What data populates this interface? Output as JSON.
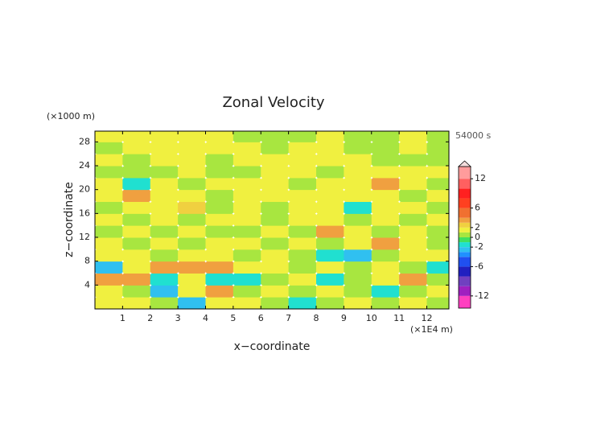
{
  "chart_data": {
    "type": "contour",
    "title": "Zonal Velocity",
    "y_unit_label": "(×1000 m)",
    "time_label": "54000 s",
    "y_label": "z−coordinate",
    "x_label": "x−coordinate",
    "x_unit_label": "(×1E4 m)",
    "xlim": [
      0,
      12.8
    ],
    "ylim": [
      0,
      29.8
    ],
    "xticks": [
      1,
      2,
      3,
      4,
      5,
      6,
      7,
      8,
      9,
      10,
      11,
      12
    ],
    "yticks": [
      4,
      8,
      12,
      16,
      20,
      24,
      28
    ],
    "x": [
      0.5,
      1.5,
      2.5,
      3.5,
      4.5,
      5.5,
      6.5,
      7.5,
      8.5,
      9.5,
      10.5,
      11.5,
      12.5
    ],
    "y": [
      1,
      3,
      5,
      7,
      9,
      11,
      13,
      15,
      17,
      19,
      21,
      23,
      25,
      27,
      29
    ],
    "values": [
      [
        1.5,
        1.5,
        0.5,
        -2.5,
        1.5,
        1.5,
        0.5,
        -1.5,
        0.5,
        1.5,
        0.5,
        1.5,
        0.5
      ],
      [
        1.5,
        0.5,
        -2.5,
        1.5,
        3.5,
        0.5,
        1.5,
        0.5,
        1.5,
        0.5,
        -1.5,
        0.5,
        1.5
      ],
      [
        3.5,
        3.5,
        -1.5,
        1.5,
        -1.5,
        -1.5,
        0.5,
        1.5,
        -1.5,
        0.5,
        1.5,
        3.5,
        0.5
      ],
      [
        -2.5,
        1.5,
        3.5,
        3.5,
        3.5,
        1.5,
        1.5,
        0.5,
        1.5,
        0.5,
        1.5,
        0.5,
        -1.5
      ],
      [
        1.5,
        1.5,
        0.5,
        1.5,
        1.5,
        0.5,
        1.5,
        0.5,
        -1.5,
        -2.5,
        0.5,
        1.5,
        1.5
      ],
      [
        1.5,
        0.5,
        1.5,
        0.5,
        1.5,
        1.5,
        0.5,
        1.5,
        0.5,
        1.5,
        3.5,
        1.5,
        0.5
      ],
      [
        0.5,
        1.5,
        0.5,
        1.5,
        0.5,
        0.5,
        1.5,
        0.5,
        3.5,
        1.5,
        0.5,
        1.5,
        0.5
      ],
      [
        1.5,
        0.5,
        1.5,
        0.5,
        1.5,
        1.5,
        0.5,
        1.5,
        1.5,
        0.5,
        1.5,
        0.5,
        1.5
      ],
      [
        0.5,
        1.5,
        1.5,
        2.5,
        0.5,
        1.5,
        0.5,
        1.5,
        1.5,
        -1.5,
        1.5,
        1.5,
        0.5
      ],
      [
        1.5,
        3.5,
        1.5,
        1.5,
        0.5,
        1.5,
        1.5,
        1.5,
        1.5,
        1.5,
        1.5,
        0.5,
        1.5
      ],
      [
        1.5,
        -1.5,
        1.5,
        0.5,
        1.5,
        1.5,
        1.5,
        0.5,
        1.5,
        1.5,
        3.5,
        1.5,
        0.5
      ],
      [
        0.5,
        0.5,
        0.5,
        1.5,
        0.5,
        0.5,
        1.5,
        1.5,
        0.5,
        1.5,
        1.5,
        1.5,
        1.5
      ],
      [
        1.5,
        0.5,
        1.5,
        1.5,
        0.5,
        1.5,
        1.5,
        1.5,
        1.5,
        1.5,
        0.5,
        0.5,
        0.5
      ],
      [
        0.5,
        1.5,
        1.5,
        1.5,
        1.5,
        1.5,
        0.5,
        1.5,
        1.5,
        0.5,
        0.5,
        1.5,
        0.5
      ],
      [
        1.5,
        1.5,
        1.5,
        1.5,
        1.5,
        0.5,
        0.5,
        0.5,
        1.5,
        0.5,
        0.5,
        1.5,
        0.5
      ]
    ],
    "colorbar": {
      "clim": [
        -14.5,
        14.5
      ],
      "levels": [
        -12,
        -10,
        -8,
        -6,
        -4,
        -3,
        -2,
        -1,
        0,
        1,
        2,
        3,
        4,
        6,
        8,
        10,
        12
      ],
      "colors": [
        "#ff40c0",
        "#a020c0",
        "#7040c0",
        "#2020c0",
        "#2050f0",
        "#2090ff",
        "#30c0f0",
        "#20e0d0",
        "#40e060",
        "#a8e640",
        "#f0f040",
        "#f0d040",
        "#f0a040",
        "#f07030",
        "#ff4020",
        "#ff2020",
        "#ff6060",
        "#ff9c9c"
      ],
      "ticks": [
        -12,
        -6,
        -2,
        0,
        2,
        6,
        12
      ],
      "extend": "max"
    }
  }
}
